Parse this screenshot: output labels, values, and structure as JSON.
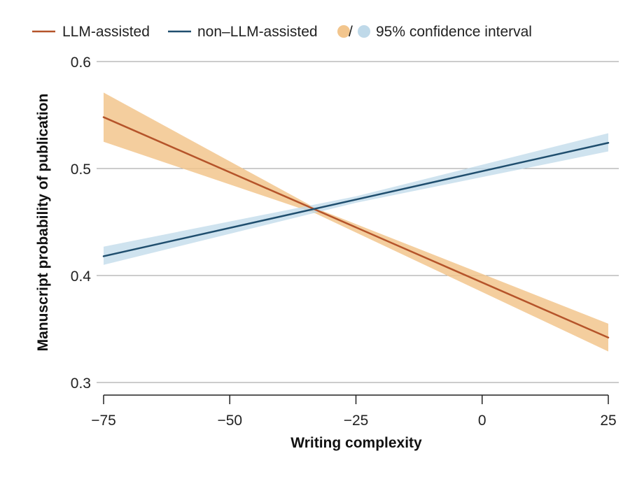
{
  "chart_data": {
    "type": "line",
    "title": "",
    "xlabel": "Writing complexity",
    "ylabel": "Manuscript probability of publication",
    "xlim": [
      -75,
      25
    ],
    "ylim": [
      0.3,
      0.6
    ],
    "xticks": [
      -75,
      -50,
      -25,
      0,
      25
    ],
    "xtick_labels": [
      "−75",
      "−50",
      "−25",
      "0",
      "25"
    ],
    "yticks": [
      0.3,
      0.4,
      0.5,
      0.6
    ],
    "ytick_labels": [
      "0.3",
      "0.4",
      "0.5",
      "0.6"
    ],
    "grid": "horizontal",
    "legend": {
      "position": "top",
      "entries": [
        "LLM-assisted",
        "non–LLM-assisted",
        "95% confidence interval"
      ],
      "ci_separator": "/"
    },
    "series": [
      {
        "name": "LLM-assisted",
        "color": "#b5542a",
        "ci_color": "#f2c58d",
        "x": [
          -75,
          25
        ],
        "y": [
          0.548,
          0.342
        ],
        "ci_x": [
          -75,
          -33,
          25
        ],
        "ci_lower": [
          0.525,
          0.458,
          0.329
        ],
        "ci_upper": [
          0.571,
          0.463,
          0.355
        ]
      },
      {
        "name": "non–LLM-assisted",
        "color": "#1f4e6e",
        "ci_color": "#bfd9e9",
        "x": [
          -75,
          25
        ],
        "y": [
          0.418,
          0.524
        ],
        "ci_x": [
          -75,
          -25,
          25
        ],
        "ci_lower": [
          0.41,
          0.468,
          0.516
        ],
        "ci_upper": [
          0.427,
          0.474,
          0.533
        ]
      }
    ]
  }
}
